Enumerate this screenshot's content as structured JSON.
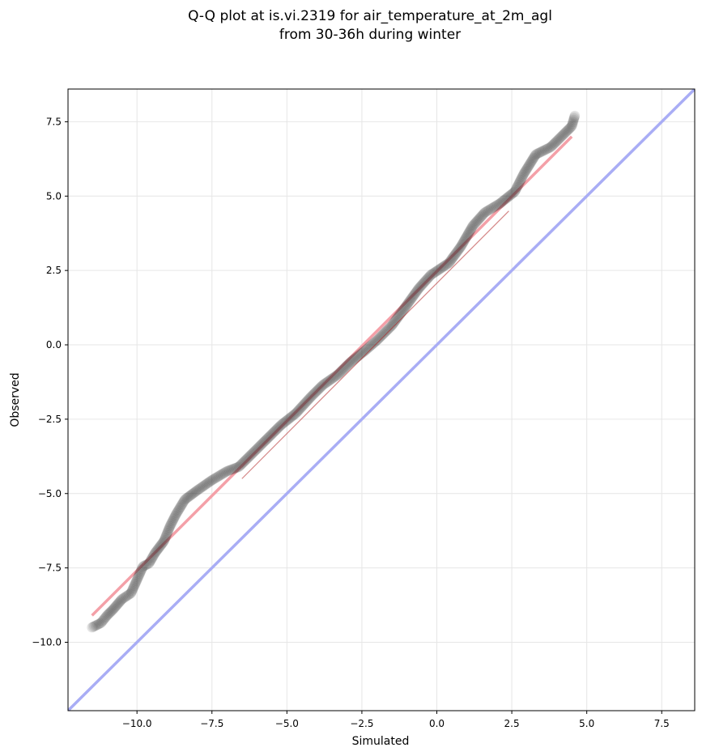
{
  "chart_data": {
    "type": "scatter",
    "title_lines": [
      "Q-Q plot at is.vi.2319 for air_temperature_at_2m_agl",
      "from 30-36h during winter"
    ],
    "xlabel": "Simulated",
    "ylabel": "Observed",
    "xlim": [
      -12.3,
      8.6
    ],
    "ylim": [
      -12.3,
      8.6
    ],
    "xticks": [
      -10.0,
      -7.5,
      -5.0,
      -2.5,
      0.0,
      2.5,
      5.0,
      7.5
    ],
    "yticks": [
      -10.0,
      -7.5,
      -5.0,
      -2.5,
      0.0,
      2.5,
      5.0,
      7.5
    ],
    "xtick_labels": [
      "−10.0",
      "−7.5",
      "−5.0",
      "−2.5",
      "0.0",
      "2.5",
      "5.0",
      "7.5"
    ],
    "ytick_labels": [
      "−10.0",
      "−7.5",
      "−5.0",
      "−2.5",
      "0.0",
      "2.5",
      "5.0",
      "7.5"
    ],
    "grid": true,
    "points_color": "#222222",
    "fit_line": {
      "x": [
        -11.5,
        4.5
      ],
      "y": [
        -9.1,
        7.0
      ],
      "color": "#f4a0a8"
    },
    "identity_line": {
      "x": [
        -12.3,
        8.6
      ],
      "y": [
        -12.3,
        8.6
      ],
      "color": "#a9adf5"
    },
    "quantile_knots": [
      [
        -11.5,
        -9.5
      ],
      [
        -11.2,
        -9.35
      ],
      [
        -11.0,
        -9.1
      ],
      [
        -10.8,
        -8.9
      ],
      [
        -10.5,
        -8.55
      ],
      [
        -10.2,
        -8.35
      ],
      [
        -10.0,
        -7.9
      ],
      [
        -9.8,
        -7.45
      ],
      [
        -9.6,
        -7.35
      ],
      [
        -9.4,
        -7.0
      ],
      [
        -9.1,
        -6.6
      ],
      [
        -8.9,
        -6.1
      ],
      [
        -8.7,
        -5.7
      ],
      [
        -8.4,
        -5.2
      ],
      [
        -8.0,
        -4.9
      ],
      [
        -7.5,
        -4.55
      ],
      [
        -7.0,
        -4.25
      ],
      [
        -6.6,
        -4.1
      ],
      [
        -6.2,
        -3.7
      ],
      [
        -5.8,
        -3.3
      ],
      [
        -5.2,
        -2.7
      ],
      [
        -4.7,
        -2.3
      ],
      [
        -4.2,
        -1.75
      ],
      [
        -3.8,
        -1.35
      ],
      [
        -3.3,
        -1.0
      ],
      [
        -2.9,
        -0.6
      ],
      [
        -2.4,
        -0.2
      ],
      [
        -2.0,
        0.15
      ],
      [
        -1.5,
        0.65
      ],
      [
        -1.1,
        1.2
      ],
      [
        -0.6,
        1.9
      ],
      [
        -0.2,
        2.35
      ],
      [
        0.4,
        2.75
      ],
      [
        0.8,
        3.3
      ],
      [
        1.2,
        4.0
      ],
      [
        1.6,
        4.45
      ],
      [
        2.1,
        4.75
      ],
      [
        2.6,
        5.15
      ],
      [
        2.9,
        5.75
      ],
      [
        3.3,
        6.4
      ],
      [
        3.8,
        6.65
      ],
      [
        4.2,
        7.05
      ],
      [
        4.5,
        7.35
      ],
      [
        4.6,
        7.7
      ]
    ]
  }
}
